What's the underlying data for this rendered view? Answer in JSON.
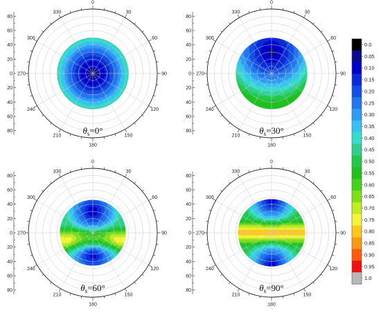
{
  "chart_data": {
    "type": "heatmap",
    "panels": [
      {
        "caption_symbol": "θ",
        "caption_sub": "s",
        "caption_value": "=0°",
        "field": {
          "type": "radial",
          "center_y": 0,
          "min": 0.08,
          "max": 0.46,
          "disk_radius": 50
        }
      },
      {
        "caption_symbol": "θ",
        "caption_sub": "s",
        "caption_value": "=30°",
        "field": {
          "type": "offset",
          "center_y": 30,
          "min": 0.08,
          "max": 0.55,
          "disk_radius": 50
        }
      },
      {
        "caption_symbol": "θ",
        "caption_sub": "s",
        "caption_value": "=60°",
        "field": {
          "type": "band",
          "center_y": 30,
          "band_y": -10,
          "min": 0.08,
          "max": 0.77,
          "disk_radius": 46
        }
      },
      {
        "caption_symbol": "θ",
        "caption_sub": "s",
        "caption_value": "=90°",
        "field": {
          "type": "band",
          "center_y": 45,
          "band_y": 0,
          "min": 0.1,
          "max": 0.82,
          "disk_radius": 47
        }
      }
    ],
    "radial_ticks": [
      "80",
      "60",
      "40",
      "20",
      "0",
      "20",
      "40",
      "60",
      "80"
    ],
    "angle_labels": [
      "0",
      "30",
      "60",
      "90",
      "120",
      "150",
      "180",
      "210",
      "240",
      "270",
      "300",
      "330"
    ],
    "radial_range": [
      0,
      90
    ],
    "colorbar": {
      "labels": [
        "0.0",
        "0.05",
        "0.10",
        "0.15",
        "0.20",
        "0.25",
        "0.30",
        "0.35",
        "0.40",
        "0.45",
        "0.50",
        "0.55",
        "0.60",
        "0.65",
        "0.70",
        "0.75",
        "0.80",
        "0.85",
        "0.90",
        "0.95",
        "1.0"
      ],
      "colors": [
        "#000000",
        "#0a0a8c",
        "#0000cd",
        "#0a2bd8",
        "#1450e6",
        "#2277f0",
        "#2f9cf5",
        "#35c4f2",
        "#36dccc",
        "#2ed08c",
        "#22c84a",
        "#20c020",
        "#46d21c",
        "#7fe01a",
        "#c0ec20",
        "#f4f43a",
        "#ffc81a",
        "#ff9a10",
        "#ff5a08",
        "#f01010",
        "#b8b8b8"
      ]
    }
  }
}
